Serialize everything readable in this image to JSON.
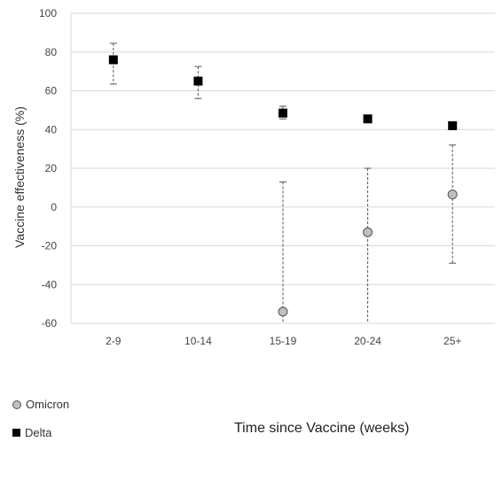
{
  "chart_data": {
    "type": "scatter",
    "categories": [
      "2-9",
      "10-14",
      "15-19",
      "20-24",
      "25+"
    ],
    "ylabel": "Vaccine effectiveness (%)",
    "xlabel": "Time since Vaccine (weeks)",
    "ylim": [
      -60,
      100
    ],
    "yticks": [
      100,
      80,
      60,
      40,
      20,
      0,
      -20,
      -40,
      -60
    ],
    "grid": true,
    "legend_position": "bottom-left",
    "series": [
      {
        "name": "Omicron",
        "marker": "circle",
        "color": "#bfbfbf",
        "points": [
          {
            "category": "15-19",
            "value": -54,
            "lower": -60,
            "upper": 13
          },
          {
            "category": "20-24",
            "value": -13,
            "lower": -60,
            "upper": 20
          },
          {
            "category": "25+",
            "value": 6.5,
            "lower": -29,
            "upper": 32
          }
        ]
      },
      {
        "name": "Delta",
        "marker": "square",
        "color": "#000000",
        "points": [
          {
            "category": "2-9",
            "value": 76,
            "lower": 63.5,
            "upper": 84.5
          },
          {
            "category": "10-14",
            "value": 65,
            "lower": 56,
            "upper": 72.5
          },
          {
            "category": "15-19",
            "value": 48.5,
            "lower": 45.5,
            "upper": 52
          },
          {
            "category": "20-24",
            "value": 45.5,
            "lower": 43.5,
            "upper": 47
          },
          {
            "category": "25+",
            "value": 42,
            "lower": 40,
            "upper": 43
          }
        ]
      }
    ]
  }
}
